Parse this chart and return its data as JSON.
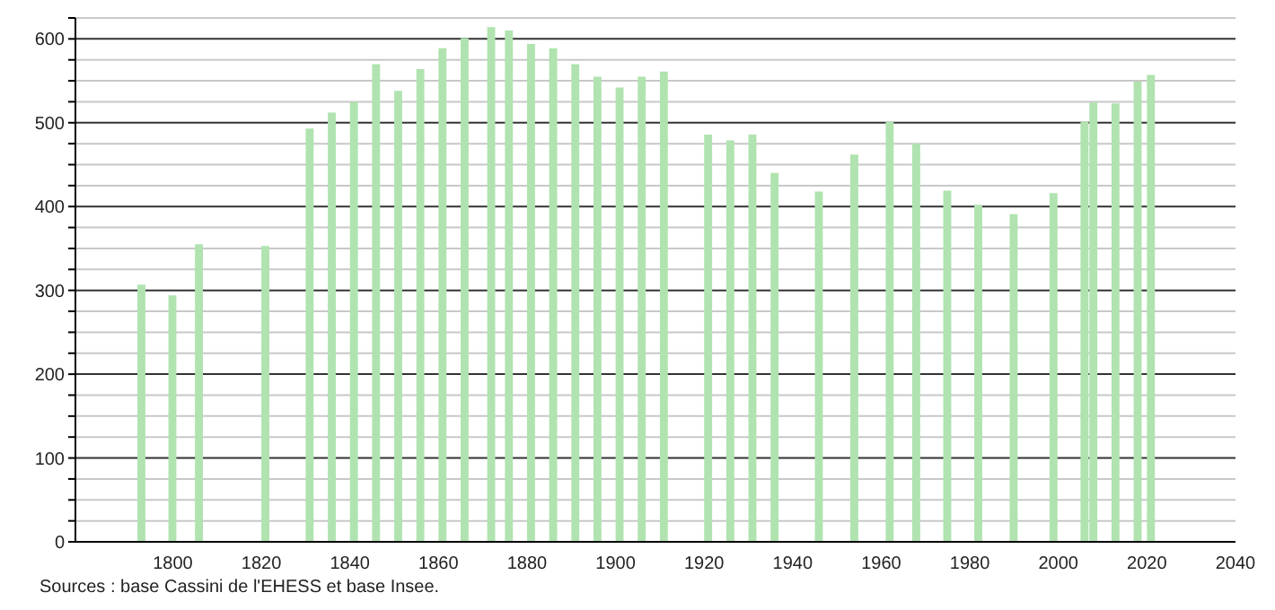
{
  "chart_data": {
    "type": "bar",
    "x": [
      1793,
      1800,
      1806,
      1821,
      1831,
      1836,
      1841,
      1846,
      1851,
      1856,
      1861,
      1866,
      1872,
      1876,
      1881,
      1886,
      1891,
      1896,
      1901,
      1906,
      1911,
      1921,
      1926,
      1931,
      1936,
      1946,
      1954,
      1962,
      1968,
      1975,
      1982,
      1990,
      1999,
      2006,
      2008,
      2013,
      2018,
      2021
    ],
    "values": [
      307,
      294,
      355,
      353,
      493,
      512,
      525,
      570,
      538,
      564,
      589,
      601,
      614,
      610,
      594,
      589,
      570,
      555,
      542,
      555,
      561,
      486,
      479,
      486,
      440,
      418,
      462,
      501,
      475,
      419,
      402,
      391,
      416,
      501,
      524,
      523,
      549,
      557
    ],
    "color": "#b0e3b0",
    "xlim": [
      1778,
      2040
    ],
    "xticks": [
      1800,
      1820,
      1840,
      1860,
      1880,
      1900,
      1920,
      1940,
      1960,
      1980,
      2000,
      2020,
      2040
    ],
    "ylim": [
      0,
      625
    ],
    "yticks": [
      0,
      {
        "value": 25,
        "label": null
      },
      {
        "value": 50,
        "label": null
      },
      {
        "value": 75,
        "label": null
      },
      100,
      {
        "value": 125,
        "label": null
      },
      {
        "value": 150,
        "label": null
      },
      {
        "value": 175,
        "label": null
      },
      200,
      {
        "value": 225,
        "label": null
      },
      {
        "value": 250,
        "label": null
      },
      {
        "value": 275,
        "label": null
      },
      300,
      {
        "value": 325,
        "label": null
      },
      {
        "value": 350,
        "label": null
      },
      {
        "value": 375,
        "label": null
      },
      400,
      {
        "value": 425,
        "label": null
      },
      {
        "value": 450,
        "label": null
      },
      {
        "value": 475,
        "label": null
      },
      500,
      {
        "value": 525,
        "label": null
      },
      {
        "value": 550,
        "label": null
      },
      {
        "value": 575,
        "label": null
      },
      600,
      {
        "value": 625,
        "label": null
      }
    ],
    "grid": "y",
    "annotations": [
      "Sources : base Cassini de l'EHESS et base Insee."
    ]
  }
}
